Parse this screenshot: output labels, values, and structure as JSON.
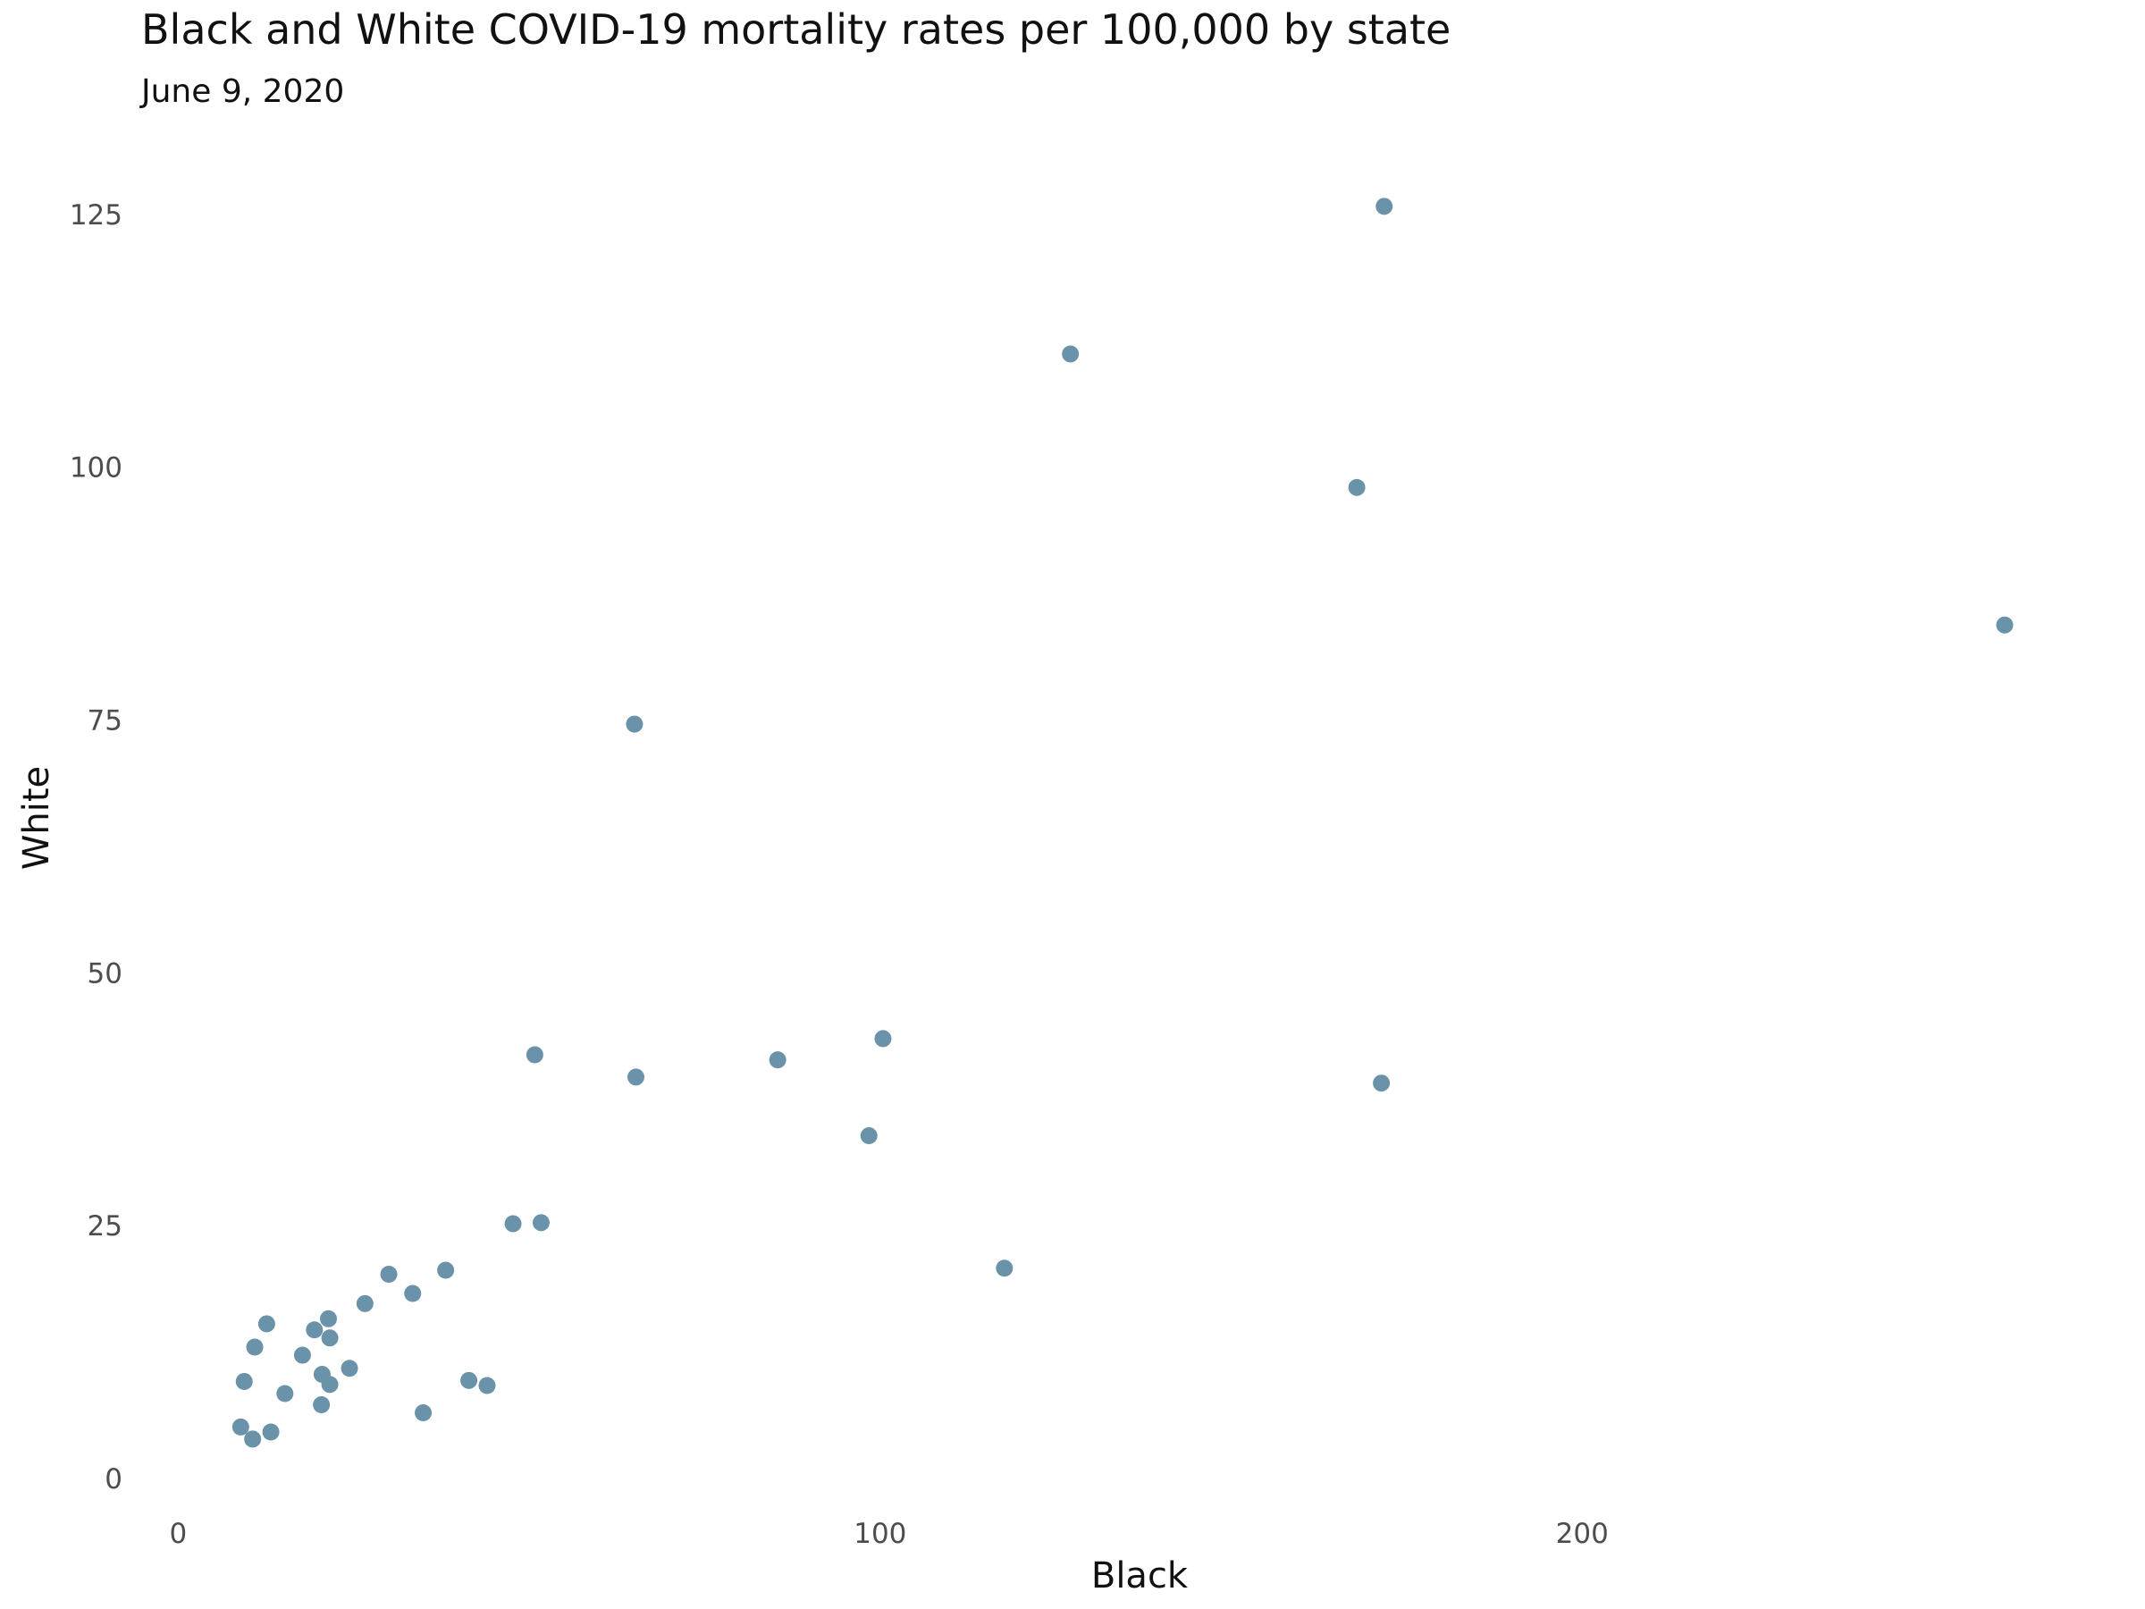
{
  "chart_data": {
    "type": "scatter",
    "title": "Black and White COVID-19 mortality rates per 100,000 by state",
    "subtitle": "June 9, 2020",
    "xlabel": "Black",
    "ylabel": "White",
    "xlim": [
      -4,
      270
    ],
    "ylim": [
      -3,
      131
    ],
    "x_ticks": [
      0,
      100,
      200
    ],
    "x_tick_labels": [
      "0",
      "100",
      "200"
    ],
    "y_ticks": [
      0,
      25,
      50,
      75,
      100,
      125
    ],
    "y_tick_labels": [
      "0",
      "25",
      "50",
      "75",
      "100",
      "125"
    ],
    "grid": false,
    "point_color": "#6a93aa",
    "points": [
      {
        "x": 171.8,
        "y": 125.8
      },
      {
        "x": 127.1,
        "y": 111.2
      },
      {
        "x": 167.9,
        "y": 98.0
      },
      {
        "x": 260.2,
        "y": 84.4
      },
      {
        "x": 65.0,
        "y": 74.6
      },
      {
        "x": 50.8,
        "y": 41.9
      },
      {
        "x": 65.2,
        "y": 39.7
      },
      {
        "x": 85.4,
        "y": 41.4
      },
      {
        "x": 100.4,
        "y": 43.5
      },
      {
        "x": 98.4,
        "y": 33.9
      },
      {
        "x": 171.4,
        "y": 39.1
      },
      {
        "x": 47.7,
        "y": 25.2
      },
      {
        "x": 51.7,
        "y": 25.3
      },
      {
        "x": 117.7,
        "y": 20.8
      },
      {
        "x": 38.1,
        "y": 20.6
      },
      {
        "x": 30.0,
        "y": 20.2
      },
      {
        "x": 33.4,
        "y": 18.3
      },
      {
        "x": 26.6,
        "y": 17.3
      },
      {
        "x": 21.4,
        "y": 15.8
      },
      {
        "x": 12.6,
        "y": 15.3
      },
      {
        "x": 19.4,
        "y": 14.7
      },
      {
        "x": 21.6,
        "y": 13.9
      },
      {
        "x": 10.9,
        "y": 13.0
      },
      {
        "x": 17.7,
        "y": 12.2
      },
      {
        "x": 24.4,
        "y": 10.9
      },
      {
        "x": 20.5,
        "y": 10.3
      },
      {
        "x": 9.4,
        "y": 9.6
      },
      {
        "x": 41.4,
        "y": 9.7
      },
      {
        "x": 44.0,
        "y": 9.2
      },
      {
        "x": 21.6,
        "y": 9.3
      },
      {
        "x": 15.2,
        "y": 8.4
      },
      {
        "x": 20.4,
        "y": 7.3
      },
      {
        "x": 34.9,
        "y": 6.5
      },
      {
        "x": 8.9,
        "y": 5.1
      },
      {
        "x": 13.2,
        "y": 4.6
      },
      {
        "x": 10.6,
        "y": 3.9
      }
    ]
  }
}
